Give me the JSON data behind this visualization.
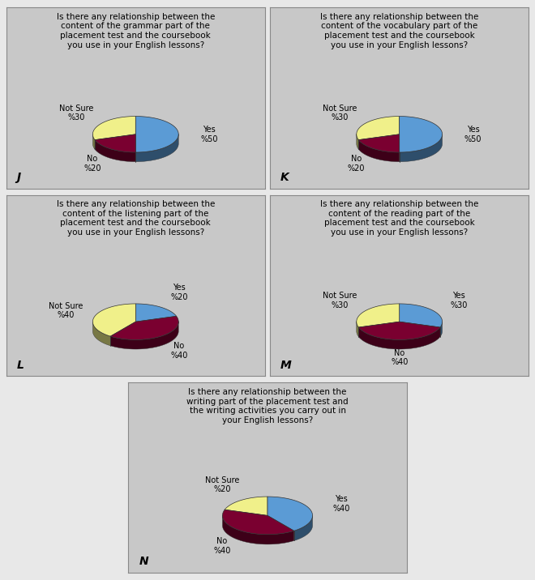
{
  "charts": [
    {
      "label": "J",
      "title": "Is there any relationship between the\ncontent of the grammar part of the\nplacement test and the coursebook\nyou use in your English lessons?",
      "slices": [
        50,
        20,
        30
      ],
      "slice_labels": [
        "Yes\n%50",
        "No\n%20",
        "Not Sure\n%30"
      ],
      "colors": [
        "#5b9bd5",
        "#7a0030",
        "#f0f08a"
      ],
      "start_angle": 90
    },
    {
      "label": "K",
      "title": "Is there any relationship between the\ncontent of the vocabulary part of the\nplacement test and the coursebook\nyou use in your English lessons?",
      "slices": [
        50,
        20,
        30
      ],
      "slice_labels": [
        "Yes\n%50",
        "No\n%20",
        "Not Sure\n%30"
      ],
      "colors": [
        "#5b9bd5",
        "#7a0030",
        "#f0f08a"
      ],
      "start_angle": 90
    },
    {
      "label": "L",
      "title": "Is there any relationship between the\ncontent of the listening part of the\nplacement test and the coursebook\nyou use in your English lessons?",
      "slices": [
        20,
        40,
        40
      ],
      "slice_labels": [
        "Yes\n%20",
        "No\n%40",
        "Not Sure\n%40"
      ],
      "colors": [
        "#5b9bd5",
        "#7a0030",
        "#f0f08a"
      ],
      "start_angle": 90
    },
    {
      "label": "M",
      "title": "Is there any relationship between the\ncontent of the reading part of the\nplacement test and the coursebook\nyou use in your English lessons?",
      "slices": [
        30,
        40,
        30
      ],
      "slice_labels": [
        "Yes\n%30",
        "No\n%40",
        "Not Sure\n%30"
      ],
      "colors": [
        "#5b9bd5",
        "#7a0030",
        "#f0f08a"
      ],
      "start_angle": 90
    },
    {
      "label": "N",
      "title": "Is there any relationship between the\nwriting part of the placement test and\nthe writing activities you carry out in\nyour English lessons?",
      "slices": [
        40,
        40,
        20
      ],
      "slice_labels": [
        "Yes\n%40",
        "No\n%40",
        "Not Sure\n%20"
      ],
      "colors": [
        "#5b9bd5",
        "#7a0030",
        "#f0f08a"
      ],
      "start_angle": 90
    }
  ],
  "panel_color": "#c8c8c8",
  "figure_bg": "#e8e8e8",
  "title_fontsize": 7.5,
  "pie_label_fontsize": 7.0,
  "chart_label_fontsize": 10
}
